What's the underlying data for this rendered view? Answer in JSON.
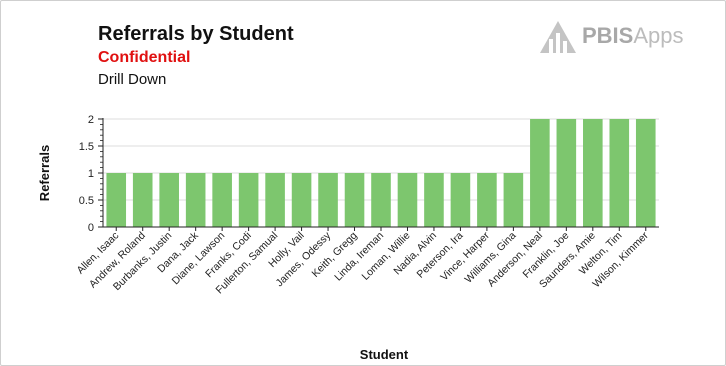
{
  "header": {
    "title": "Referrals by Student",
    "subtitle": "Confidential",
    "drill_label": "Drill Down"
  },
  "logo": {
    "brand": "PBIS",
    "suffix": "Apps",
    "icon": "pbis-logo-icon"
  },
  "colors": {
    "bar": "#7dc66e",
    "grid": "#dcdcdc",
    "axis": "#222222",
    "confidential": "#e01010"
  },
  "chart_data": {
    "type": "bar",
    "title": "Referrals by Student",
    "xlabel": "Student",
    "ylabel": "Referrals",
    "ylim": [
      0,
      2
    ],
    "yticks": [
      "0",
      "0.5",
      "1",
      "1.5",
      "2"
    ],
    "grid": true,
    "categories": [
      "Allen, Isaac",
      "Andrew, Roland",
      "Burbanks, Justin",
      "Dana, Jack",
      "Diane, Lawson",
      "Franks, Codi",
      "Fullerton, Samual",
      "Holly, Vail",
      "James, Odessy",
      "Keith, Gregg",
      "Linda, Ireman",
      "Loman, Willie",
      "Nadia, Alvin",
      "Peterson, Ira",
      "Vince, Harper",
      "Williams, Gina",
      "Anderson, Neal",
      "Franklin, Joe",
      "Saunders, Amie",
      "Welton, Tim",
      "Wilson, Kimmer"
    ],
    "values": [
      1,
      1,
      1,
      1,
      1,
      1,
      1,
      1,
      1,
      1,
      1,
      1,
      1,
      1,
      1,
      1,
      2,
      2,
      2,
      2,
      2
    ]
  }
}
